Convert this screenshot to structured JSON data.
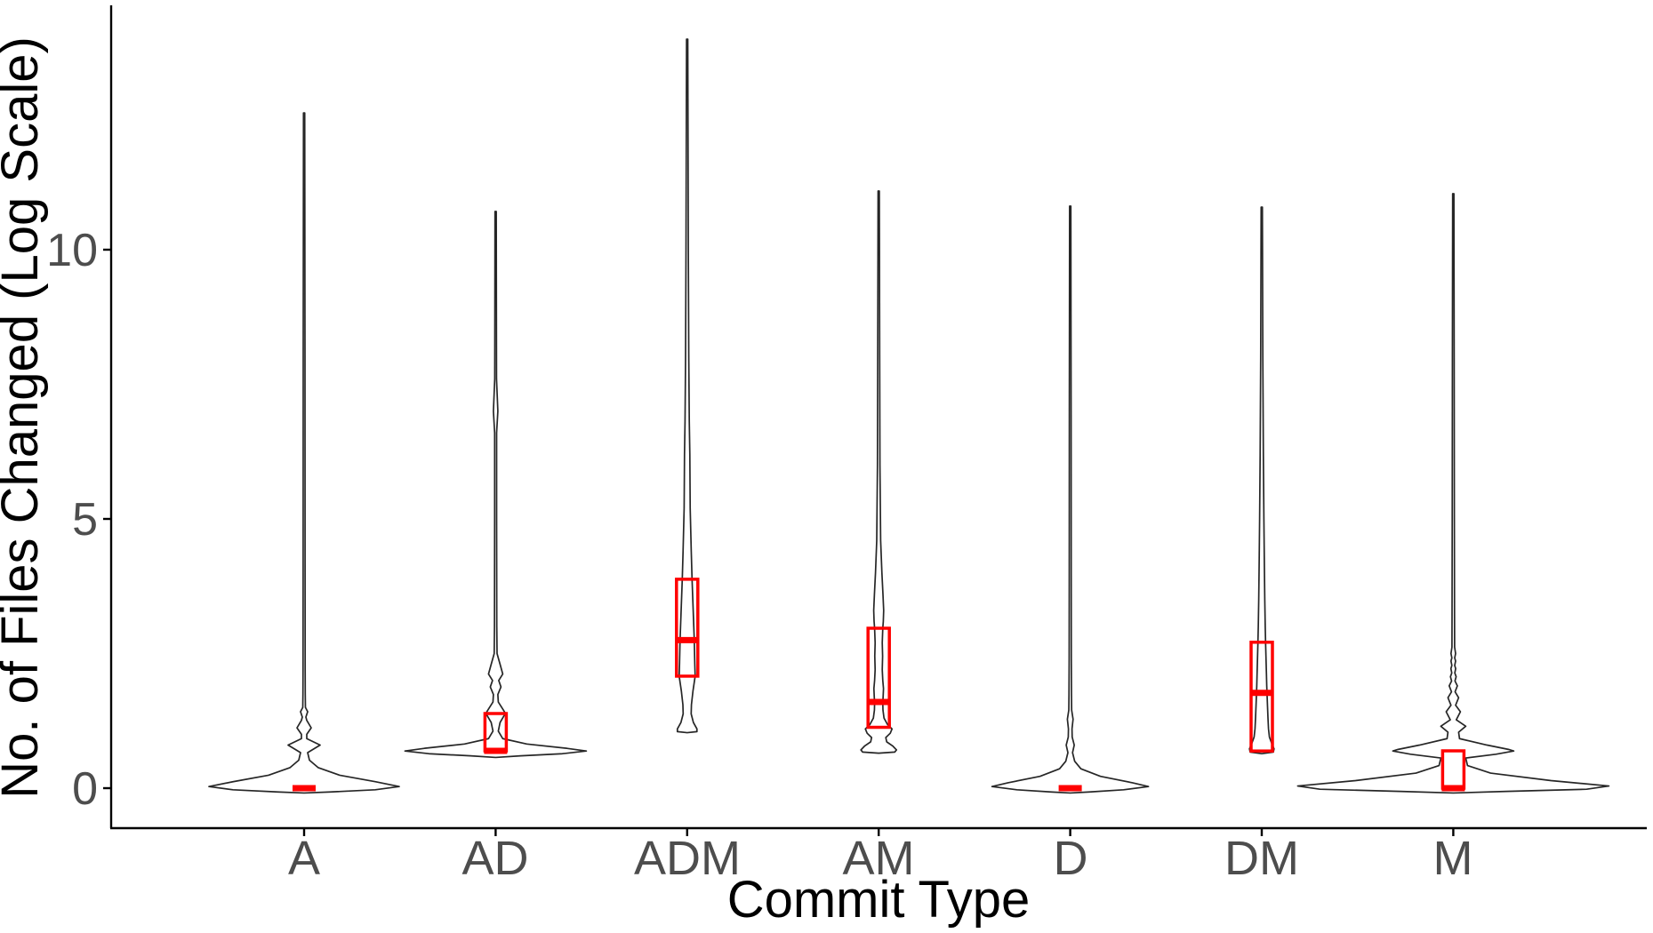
{
  "chart_data": {
    "type": "violin",
    "title": "",
    "xlabel": "Commit Type",
    "ylabel": "No. of Files Changed (Log Scale)",
    "legend": null,
    "grid": false,
    "ylim": [
      -0.75,
      14.6
    ],
    "yticks": [
      {
        "value": 0,
        "label": "0"
      },
      {
        "value": 5,
        "label": "5"
      },
      {
        "value": 10,
        "label": "10"
      }
    ],
    "categories": [
      "A",
      "AD",
      "ADM",
      "AM",
      "D",
      "DM",
      "M"
    ],
    "colors": {
      "violin_outline": "#262626",
      "violin_fill": "#FFFFFF",
      "box_stroke": "#FF0000",
      "axis_text": "#4D4D4D",
      "title_text": "#000000",
      "axis_line": "#000000"
    },
    "note": "y axis is log of number of files changed; violin outlines with red boxplots (q1/median/q3), medians drawn as thick red segments",
    "violins": [
      {
        "category": "A",
        "max": 12.54,
        "min": -0.09,
        "box": {
          "q1": 0,
          "median": 0,
          "q3": 0
        },
        "profile": [
          [
            12.54,
            0.7
          ],
          [
            8,
            1.0
          ],
          [
            4,
            1.1
          ],
          [
            2.2,
            1.2
          ],
          [
            1.75,
            1.3
          ],
          [
            1.5,
            1.5
          ],
          [
            1.42,
            4
          ],
          [
            1.32,
            2
          ],
          [
            1.26,
            3
          ],
          [
            1.12,
            8
          ],
          [
            1.0,
            3
          ],
          [
            0.92,
            3
          ],
          [
            0.8,
            18
          ],
          [
            0.66,
            4
          ],
          [
            0.52,
            6
          ],
          [
            0.38,
            16
          ],
          [
            0.24,
            40
          ],
          [
            0.12,
            80
          ],
          [
            0.03,
            107
          ],
          [
            -0.03,
            80
          ],
          [
            -0.07,
            30
          ],
          [
            -0.09,
            0
          ]
        ]
      },
      {
        "category": "AD",
        "max": 10.71,
        "min": 0.57,
        "box": {
          "q1": 0.693,
          "median": 0.693,
          "q3": 1.386
        },
        "profile": [
          [
            10.71,
            0.7
          ],
          [
            7.6,
            1.0
          ],
          [
            7.0,
            2.5
          ],
          [
            6.6,
            1.1
          ],
          [
            5.0,
            1.1
          ],
          [
            3.0,
            1.3
          ],
          [
            2.5,
            1.6
          ],
          [
            2.3,
            5
          ],
          [
            2.12,
            8
          ],
          [
            2.0,
            3.5
          ],
          [
            1.88,
            6
          ],
          [
            1.74,
            2.5
          ],
          [
            1.6,
            3
          ],
          [
            1.47,
            8
          ],
          [
            1.39,
            11
          ],
          [
            1.22,
            5
          ],
          [
            1.06,
            3
          ],
          [
            0.92,
            8
          ],
          [
            0.82,
            35
          ],
          [
            0.74,
            80
          ],
          [
            0.69,
            102
          ],
          [
            0.64,
            75
          ],
          [
            0.6,
            28
          ],
          [
            0.57,
            0
          ]
        ]
      },
      {
        "category": "ADM",
        "max": 13.91,
        "min": 1.03,
        "box": {
          "q1": 2.08,
          "median": 2.75,
          "q3": 3.88
        },
        "profile": [
          [
            13.91,
            0.7
          ],
          [
            10,
            1.3
          ],
          [
            8,
            1.8
          ],
          [
            6.8,
            2.4
          ],
          [
            6.2,
            3.0
          ],
          [
            5.2,
            3.4
          ],
          [
            4.4,
            4.6
          ],
          [
            3.88,
            5.5
          ],
          [
            3.2,
            7
          ],
          [
            2.75,
            8
          ],
          [
            2.3,
            8.6
          ],
          [
            2.08,
            9
          ],
          [
            1.8,
            6.5
          ],
          [
            1.55,
            4.8
          ],
          [
            1.38,
            4.5
          ],
          [
            1.22,
            7
          ],
          [
            1.1,
            11
          ],
          [
            1.05,
            11
          ],
          [
            1.03,
            0
          ]
        ]
      },
      {
        "category": "AM",
        "max": 11.09,
        "min": 0.65,
        "box": {
          "q1": 1.13,
          "median": 1.6,
          "q3": 2.97
        },
        "profile": [
          [
            11.09,
            0.7
          ],
          [
            8,
            1.1
          ],
          [
            6,
            1.4
          ],
          [
            4.6,
            2.2
          ],
          [
            4.0,
            3.6
          ],
          [
            3.6,
            4.8
          ],
          [
            3.3,
            5.6
          ],
          [
            3.1,
            5.2
          ],
          [
            2.97,
            4.6
          ],
          [
            2.7,
            4.0
          ],
          [
            2.45,
            4.4
          ],
          [
            2.2,
            4.0
          ],
          [
            2.0,
            4.6
          ],
          [
            1.85,
            5.4
          ],
          [
            1.7,
            5.0
          ],
          [
            1.58,
            4.6
          ],
          [
            1.45,
            4.8
          ],
          [
            1.3,
            6
          ],
          [
            1.18,
            10
          ],
          [
            1.1,
            15
          ],
          [
            1.02,
            13
          ],
          [
            0.94,
            8
          ],
          [
            0.86,
            9
          ],
          [
            0.78,
            16
          ],
          [
            0.71,
            20
          ],
          [
            0.67,
            18
          ],
          [
            0.65,
            0
          ]
        ]
      },
      {
        "category": "D",
        "max": 10.81,
        "min": -0.09,
        "box": {
          "q1": 0,
          "median": 0,
          "q3": 0
        },
        "profile": [
          [
            10.81,
            0.7
          ],
          [
            7,
            1.0
          ],
          [
            4,
            1.1
          ],
          [
            2.4,
            1.2
          ],
          [
            1.75,
            1.4
          ],
          [
            1.45,
            1.6
          ],
          [
            1.28,
            3.2
          ],
          [
            1.1,
            2.0
          ],
          [
            0.95,
            2.2
          ],
          [
            0.8,
            4.5
          ],
          [
            0.66,
            2.6
          ],
          [
            0.5,
            5
          ],
          [
            0.36,
            12
          ],
          [
            0.22,
            34
          ],
          [
            0.1,
            70
          ],
          [
            0.03,
            88
          ],
          [
            -0.03,
            60
          ],
          [
            -0.07,
            22
          ],
          [
            -0.09,
            0
          ]
        ]
      },
      {
        "category": "DM",
        "max": 10.79,
        "min": 0.64,
        "box": {
          "q1": 0.69,
          "median": 1.77,
          "q3": 2.71
        },
        "profile": [
          [
            10.79,
            0.7
          ],
          [
            8,
            1.2
          ],
          [
            6.2,
            1.8
          ],
          [
            5.0,
            2.4
          ],
          [
            4.2,
            2.9
          ],
          [
            3.5,
            3.4
          ],
          [
            3.0,
            3.9
          ],
          [
            2.71,
            4.3
          ],
          [
            2.4,
            4.8
          ],
          [
            2.1,
            5.3
          ],
          [
            1.9,
            5.6
          ],
          [
            1.77,
            5.9
          ],
          [
            1.55,
            6.4
          ],
          [
            1.3,
            7
          ],
          [
            1.1,
            7.6
          ],
          [
            0.95,
            8.6
          ],
          [
            0.84,
            11
          ],
          [
            0.73,
            13.8
          ],
          [
            0.67,
            13
          ],
          [
            0.64,
            0
          ]
        ]
      },
      {
        "category": "M",
        "max": 11.04,
        "min": -0.09,
        "box": {
          "q1": 0,
          "median": 0,
          "q3": 0.693
        },
        "profile": [
          [
            11.04,
            0.7
          ],
          [
            8,
            1.0
          ],
          [
            5,
            1.2
          ],
          [
            3.2,
            1.4
          ],
          [
            2.62,
            1.5
          ],
          [
            2.5,
            2.6
          ],
          [
            2.42,
            1.6
          ],
          [
            2.36,
            2.6
          ],
          [
            2.28,
            1.6
          ],
          [
            2.22,
            2.7
          ],
          [
            2.14,
            1.7
          ],
          [
            2.07,
            3.2
          ],
          [
            1.99,
            1.9
          ],
          [
            1.9,
            4.6
          ],
          [
            1.79,
            2.0
          ],
          [
            1.68,
            6
          ],
          [
            1.54,
            2.6
          ],
          [
            1.42,
            8
          ],
          [
            1.27,
            3.4
          ],
          [
            1.15,
            14
          ],
          [
            1.04,
            6
          ],
          [
            0.92,
            7
          ],
          [
            0.8,
            38
          ],
          [
            0.72,
            62
          ],
          [
            0.69,
            68
          ],
          [
            0.63,
            48
          ],
          [
            0.56,
            14
          ],
          [
            0.42,
            16
          ],
          [
            0.28,
            42
          ],
          [
            0.14,
            110
          ],
          [
            0.04,
            175
          ],
          [
            -0.02,
            150
          ],
          [
            -0.06,
            60
          ],
          [
            -0.09,
            0
          ]
        ]
      }
    ]
  }
}
